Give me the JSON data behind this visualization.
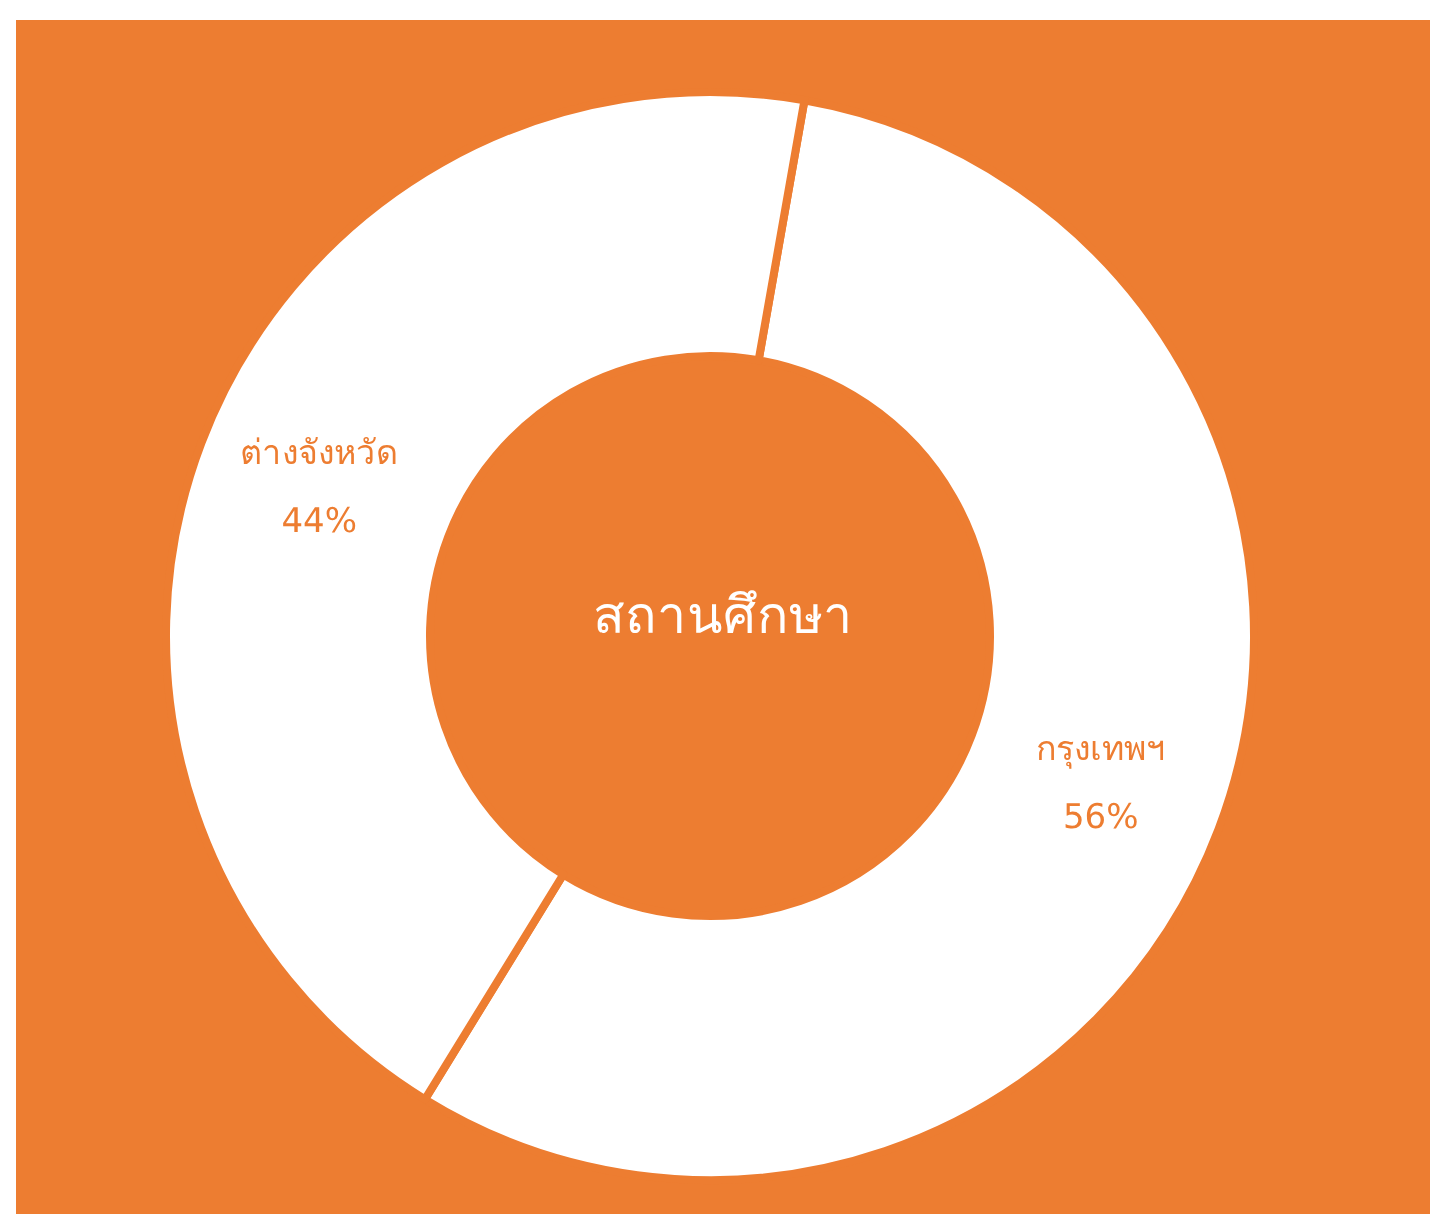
{
  "chart_data": {
    "type": "donut",
    "title": "สถานศึกษา",
    "categories": [
      "กรุงเทพฯ",
      "ต่างจังหวัด"
    ],
    "values": [
      56,
      44
    ],
    "colors": [
      "#ffffff",
      "#ffffff"
    ],
    "value_labels": [
      "56%",
      "44%"
    ],
    "legend": false
  }
}
